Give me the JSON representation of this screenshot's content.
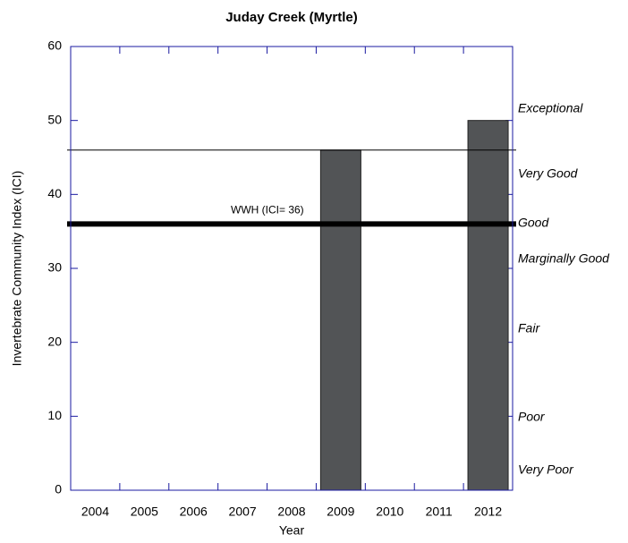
{
  "chart_data": {
    "type": "bar",
    "title": "Juday Creek (Myrtle)",
    "x_label": "Year",
    "y_label": "Invertebrate Community Index (ICI)",
    "categories": [
      "2004",
      "2005",
      "2006",
      "2007",
      "2008",
      "2009",
      "2010",
      "2011",
      "2012"
    ],
    "values": [
      null,
      null,
      null,
      null,
      null,
      46,
      null,
      null,
      50
    ],
    "color": "#525456",
    "ylim": [
      0,
      60
    ],
    "yticks": [
      0,
      10,
      20,
      30,
      40,
      50,
      60
    ],
    "reference_lines": [
      {
        "value": 46
      },
      {
        "value": 36,
        "label": "WWH (ICI= 36)"
      }
    ],
    "annotations": [
      "Exceptional",
      "Very Good",
      "Good",
      "Marginally Good",
      "Fair",
      "Poor",
      "Very Poor"
    ]
  }
}
